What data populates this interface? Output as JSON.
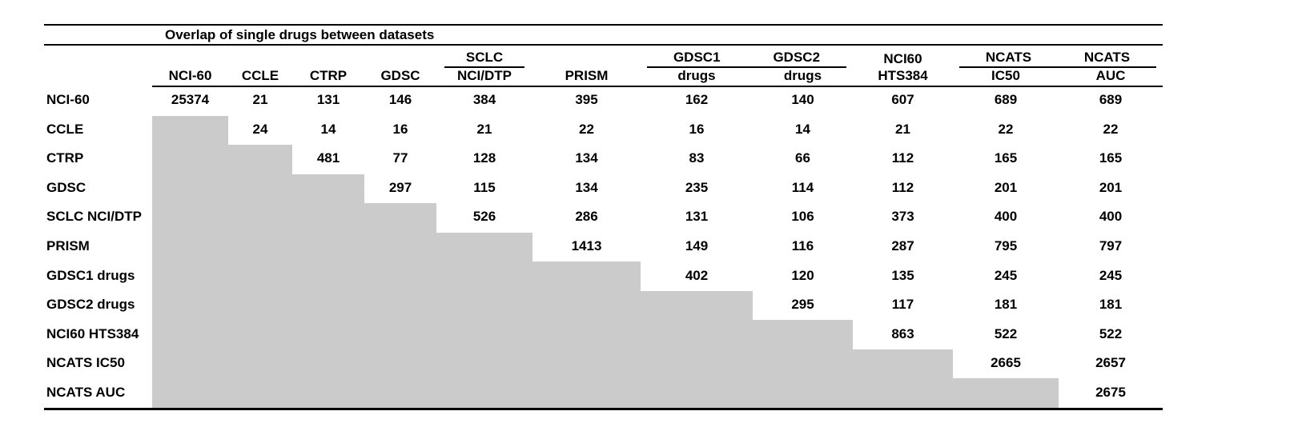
{
  "title": "Overlap of single drugs between datasets",
  "colors": {
    "shaded": "#cbcbcb",
    "rule": "#000000",
    "text": "#000000",
    "background": "#ffffff"
  },
  "table": {
    "header_groups": [
      {
        "labels": [
          "SCLC"
        ],
        "start": 4,
        "end": 4,
        "underline": true
      },
      {
        "labels": [
          "GDSC1",
          "GDSC2"
        ],
        "start": 6,
        "end": 7,
        "underline": true
      },
      {
        "labels": [
          "NCI60"
        ],
        "start": 8,
        "end": 8,
        "underline": false
      },
      {
        "labels": [
          "NCATS",
          "NCATS"
        ],
        "start": 9,
        "end": 10,
        "underline": true
      }
    ],
    "sub_headers": [
      "NCI-60",
      "CCLE",
      "CTRP",
      "GDSC",
      "NCI/DTP",
      "PRISM",
      "drugs",
      "drugs",
      "HTS384",
      "IC50",
      "AUC"
    ],
    "rows": [
      {
        "label": "NCI-60",
        "values": [
          25374,
          21,
          131,
          146,
          384,
          395,
          162,
          140,
          607,
          689,
          689
        ]
      },
      {
        "label": "CCLE",
        "values": [
          null,
          24,
          14,
          16,
          21,
          22,
          16,
          14,
          21,
          22,
          22
        ]
      },
      {
        "label": "CTRP",
        "values": [
          null,
          null,
          481,
          77,
          128,
          134,
          83,
          66,
          112,
          165,
          165
        ]
      },
      {
        "label": "GDSC",
        "values": [
          null,
          null,
          null,
          297,
          115,
          134,
          235,
          114,
          112,
          201,
          201
        ]
      },
      {
        "label": "SCLC NCI/DTP",
        "values": [
          null,
          null,
          null,
          null,
          526,
          286,
          131,
          106,
          373,
          400,
          400
        ]
      },
      {
        "label": "PRISM",
        "values": [
          null,
          null,
          null,
          null,
          null,
          1413,
          149,
          116,
          287,
          795,
          797
        ]
      },
      {
        "label": "GDSC1 drugs",
        "values": [
          null,
          null,
          null,
          null,
          null,
          null,
          402,
          120,
          135,
          245,
          245
        ]
      },
      {
        "label": "GDSC2 drugs",
        "values": [
          null,
          null,
          null,
          null,
          null,
          null,
          null,
          295,
          117,
          181,
          181
        ]
      },
      {
        "label": "NCI60 HTS384",
        "values": [
          null,
          null,
          null,
          null,
          null,
          null,
          null,
          null,
          863,
          522,
          522
        ]
      },
      {
        "label": "NCATS IC50",
        "values": [
          null,
          null,
          null,
          null,
          null,
          null,
          null,
          null,
          null,
          2665,
          2657
        ]
      },
      {
        "label": "NCATS AUC",
        "values": [
          null,
          null,
          null,
          null,
          null,
          null,
          null,
          null,
          null,
          null,
          2675
        ]
      }
    ]
  }
}
